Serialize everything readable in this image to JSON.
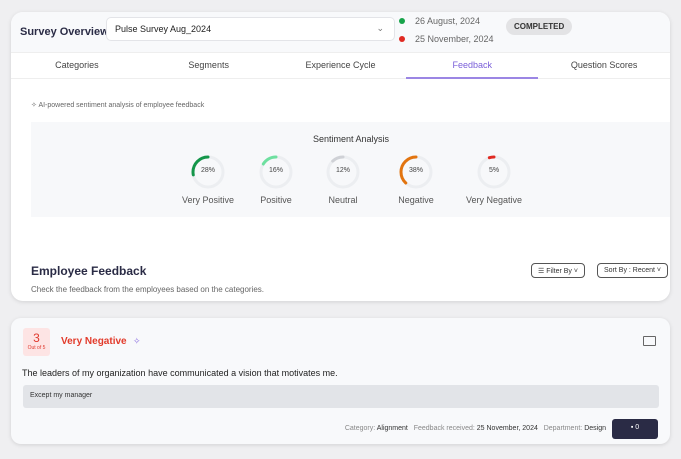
{
  "header": {
    "title": "Survey Overview",
    "survey_select": "Pulse Survey Aug_2024",
    "start_date": "26 August, 2024",
    "end_date": "25 November, 2024",
    "status": "COMPLETED"
  },
  "tabs": [
    {
      "label": "Categories"
    },
    {
      "label": "Segments"
    },
    {
      "label": "Experience Cycle"
    },
    {
      "label": "Feedback"
    },
    {
      "label": "Question Scores"
    }
  ],
  "ai_note": "AI-powered sentiment analysis of employee feedback",
  "sentiment": {
    "title": "Sentiment Analysis",
    "items": [
      {
        "label": "Very Positive",
        "pct": "28%",
        "value": 28,
        "color": "#14964a"
      },
      {
        "label": "Positive",
        "pct": "16%",
        "value": 16,
        "color": "#6ee0a0"
      },
      {
        "label": "Neutral",
        "pct": "12%",
        "value": 12,
        "color": "#cfd1d6"
      },
      {
        "label": "Negative",
        "pct": "38%",
        "value": 38,
        "color": "#e2740f"
      },
      {
        "label": "Very Negative",
        "pct": "5%",
        "value": 5,
        "color": "#e02a22"
      }
    ]
  },
  "feedback": {
    "title": "Employee Feedback",
    "subtitle": "Check the feedback from the employees based on the categories.",
    "filter_label": "Filter By",
    "sort_label": "Sort By : Recent"
  },
  "item": {
    "score": "3",
    "out_of": "Out of 5",
    "sentiment": "Very Negative",
    "question": "The leaders of my organization have communicated a vision that motivates me.",
    "answer": "Except my manager",
    "category_label": "Category:",
    "category": "Alignment",
    "received_label": "Feedback received:",
    "received": "25 November, 2024",
    "department_label": "Department:",
    "department": "Design",
    "comments": "0"
  }
}
